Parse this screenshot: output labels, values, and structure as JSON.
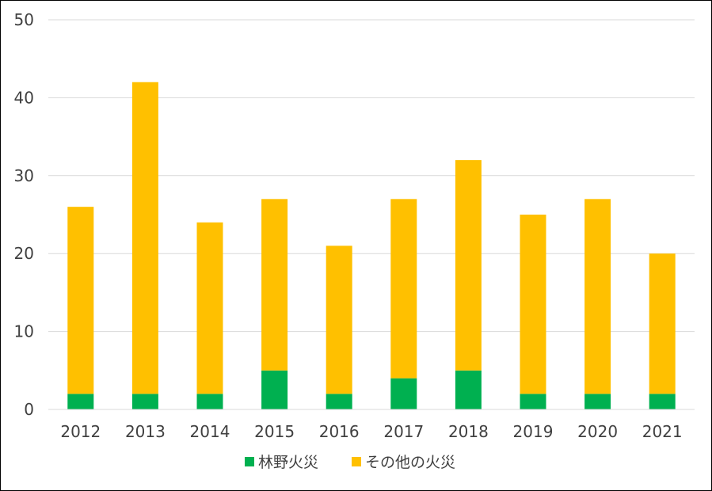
{
  "chart_data": {
    "type": "bar",
    "stacked": true,
    "categories": [
      "2012",
      "2013",
      "2014",
      "2015",
      "2016",
      "2017",
      "2018",
      "2019",
      "2020",
      "2021"
    ],
    "series": [
      {
        "name": "林野火災",
        "color": "#00b050",
        "values": [
          2,
          2,
          2,
          5,
          2,
          4,
          5,
          2,
          2,
          2
        ]
      },
      {
        "name": "その他の火災",
        "color": "#ffc000",
        "values": [
          24,
          40,
          22,
          22,
          19,
          23,
          27,
          23,
          25,
          18
        ]
      }
    ],
    "title": "",
    "xlabel": "",
    "ylabel": "",
    "ylim": [
      0,
      50
    ],
    "yticks": [
      0,
      10,
      20,
      30,
      40,
      50
    ],
    "grid": true,
    "legend_position": "bottom"
  }
}
